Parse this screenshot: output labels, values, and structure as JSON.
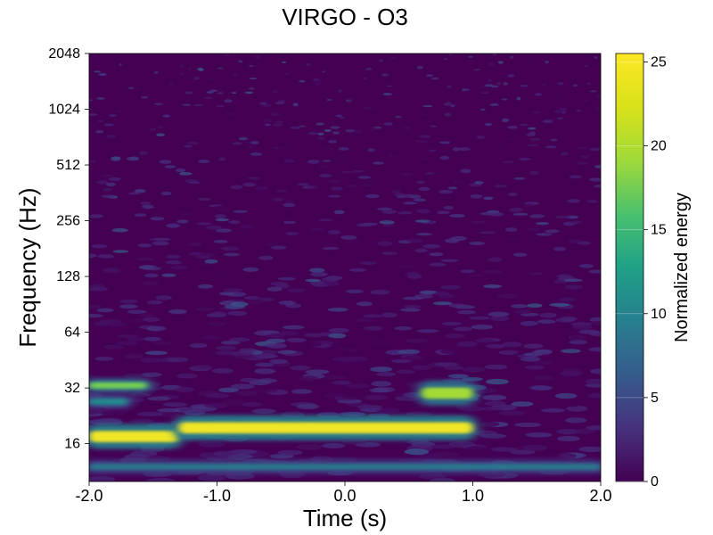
{
  "chart_data": {
    "type": "heatmap",
    "title": "VIRGO - O3",
    "xlabel": "Time (s)",
    "ylabel": "Frequency (Hz)",
    "xlim": [
      -2.0,
      2.0
    ],
    "ylim": [
      10,
      2048
    ],
    "yscale": "log2",
    "x_ticks": [
      -2.0,
      -1.0,
      0.0,
      1.0,
      2.0
    ],
    "x_tick_labels": [
      "-2.0",
      "-1.0",
      "0.0",
      "1.0",
      "2.0"
    ],
    "y_ticks": [
      16,
      32,
      64,
      128,
      256,
      512,
      1024,
      2048
    ],
    "y_tick_labels": [
      "16",
      "32",
      "64",
      "128",
      "256",
      "512",
      "1024",
      "2048"
    ],
    "colormap": "viridis",
    "colorbar": {
      "label": "Normalized energy",
      "range": [
        0,
        25.5
      ],
      "ticks": [
        0,
        5,
        10,
        15,
        20,
        25
      ],
      "tick_labels": [
        "0",
        "5",
        "10",
        "15",
        "20",
        "25"
      ]
    },
    "features": [
      {
        "t_start": -2.0,
        "t_end": -1.3,
        "freq": 17.5,
        "energy": 25
      },
      {
        "t_start": -1.3,
        "t_end": 1.0,
        "freq": 19.5,
        "energy": 25
      },
      {
        "t_start": 0.6,
        "t_end": 1.0,
        "freq": 30,
        "energy": 22
      },
      {
        "t_start": -2.0,
        "t_end": -1.55,
        "freq": 33,
        "energy": 20
      },
      {
        "t_start": -2.0,
        "t_end": -1.7,
        "freq": 27,
        "energy": 12
      },
      {
        "t_start": -2.0,
        "t_end": 2.0,
        "freq": 12,
        "energy": 10
      }
    ]
  }
}
